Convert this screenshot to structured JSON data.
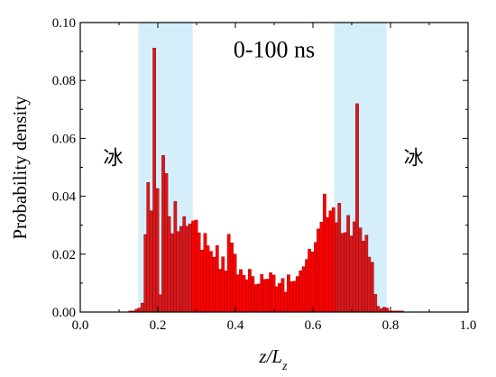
{
  "chart_data": {
    "type": "bar",
    "xlabel": "z/L",
    "xlabel_sub": "z",
    "ylabel": "Probability density",
    "xlim": [
      0.0,
      1.0
    ],
    "ylim": [
      0.0,
      0.1
    ],
    "xticks": [
      "0.0",
      "0.2",
      "0.4",
      "0.6",
      "0.8",
      "1.0"
    ],
    "yticks": [
      "0.00",
      "0.02",
      "0.04",
      "0.06",
      "0.08",
      "0.10"
    ],
    "grid": false,
    "bin_width": 0.0077,
    "colors": {
      "interior_bar": "#ff0000",
      "ice_bar": "#d7191c",
      "bar_edge": "#8b0000",
      "ice_band": "#d4eefa"
    },
    "annotations": [
      {
        "text": "0-100 ns",
        "x": 0.5,
        "y": 0.088
      },
      {
        "text": "冰",
        "x": 0.085,
        "y": 0.051
      },
      {
        "text": "冰",
        "x": 0.86,
        "y": 0.051
      }
    ],
    "ice_regions": [
      [
        0.15,
        0.29
      ],
      [
        0.655,
        0.79
      ]
    ],
    "x": [
      0.129,
      0.137,
      0.145,
      0.152,
      0.16,
      0.168,
      0.175,
      0.183,
      0.191,
      0.199,
      0.206,
      0.214,
      0.222,
      0.229,
      0.237,
      0.245,
      0.252,
      0.26,
      0.268,
      0.276,
      0.283,
      0.291,
      0.299,
      0.306,
      0.314,
      0.322,
      0.329,
      0.337,
      0.345,
      0.353,
      0.36,
      0.368,
      0.376,
      0.383,
      0.391,
      0.399,
      0.406,
      0.414,
      0.422,
      0.43,
      0.437,
      0.445,
      0.453,
      0.46,
      0.468,
      0.476,
      0.483,
      0.491,
      0.499,
      0.507,
      0.514,
      0.522,
      0.53,
      0.537,
      0.545,
      0.553,
      0.56,
      0.568,
      0.576,
      0.584,
      0.591,
      0.599,
      0.607,
      0.614,
      0.622,
      0.63,
      0.637,
      0.645,
      0.653,
      0.661,
      0.668,
      0.676,
      0.684,
      0.691,
      0.699,
      0.707,
      0.714,
      0.722,
      0.73,
      0.738,
      0.745,
      0.753,
      0.761,
      0.768,
      0.776,
      0.784,
      0.791,
      0.799,
      0.807,
      0.815,
      0.822,
      0.83
    ],
    "values": [
      0.0004,
      0.0004,
      0.001,
      0.0014,
      0.0031,
      0.0268,
      0.0448,
      0.035,
      0.0912,
      0.0427,
      0.006,
      0.0541,
      0.0479,
      0.033,
      0.0271,
      0.0382,
      0.0278,
      0.0296,
      0.033,
      0.0297,
      0.0305,
      0.0315,
      0.0318,
      0.0274,
      0.0214,
      0.0272,
      0.0229,
      0.021,
      0.019,
      0.023,
      0.0148,
      0.0191,
      0.0142,
      0.0269,
      0.0239,
      0.02,
      0.0129,
      0.0147,
      0.0127,
      0.0112,
      0.0148,
      0.0123,
      0.0095,
      0.0097,
      0.013,
      0.0113,
      0.0114,
      0.0136,
      0.0128,
      0.0088,
      0.0099,
      0.0116,
      0.0069,
      0.0129,
      0.0105,
      0.0107,
      0.0123,
      0.0143,
      0.0157,
      0.0182,
      0.0217,
      0.0208,
      0.0241,
      0.0287,
      0.0311,
      0.0408,
      0.0327,
      0.035,
      0.0361,
      0.0309,
      0.0376,
      0.0272,
      0.0275,
      0.0334,
      0.0263,
      0.0312,
      0.072,
      0.0291,
      0.0245,
      0.0266,
      0.019,
      0.0172,
      0.0061,
      0.002,
      0.0012,
      0.0017,
      0.0014,
      0.0004,
      0.0004,
      0.0004,
      0.0004,
      0.0004
    ]
  }
}
